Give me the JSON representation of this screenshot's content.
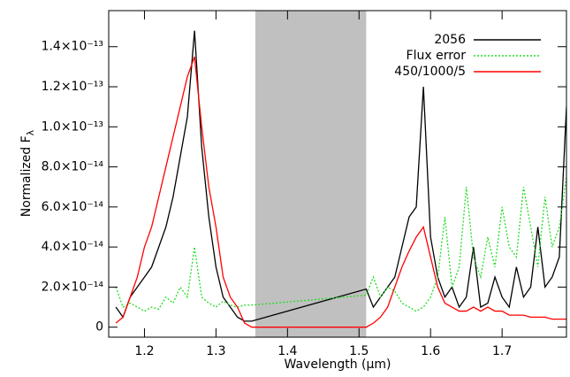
{
  "chart_data": {
    "type": "line",
    "x_label": "Wavelength (μm)",
    "y_label": "Normalized F",
    "y_label_subscript": "λ",
    "xlim": [
      1.15,
      1.79
    ],
    "ylim": [
      -5e-15,
      1.58e-13
    ],
    "xticks": [
      1.2,
      1.3,
      1.4,
      1.5,
      1.6,
      1.7
    ],
    "yticks": [
      0,
      {
        "value": 2e-14,
        "label": "2.0×10⁻¹⁴"
      },
      {
        "value": 4e-14,
        "label": "4.0×10⁻¹⁴"
      },
      {
        "value": 6e-14,
        "label": "6.0×10⁻¹⁴"
      },
      {
        "value": 8e-14,
        "label": "8.0×10⁻¹⁴"
      },
      {
        "value": 1e-13,
        "label": "1.0×10⁻¹³"
      },
      {
        "value": 1.2e-13,
        "label": "1.2×10⁻¹³"
      },
      {
        "value": 1.4e-13,
        "label": "1.4×10⁻¹³"
      }
    ],
    "shaded_region": {
      "xrange": [
        1.355,
        1.51
      ],
      "color": "#c0c0c0"
    },
    "legend": "upper right",
    "x": [
      1.16,
      1.17,
      1.18,
      1.19,
      1.2,
      1.21,
      1.22,
      1.23,
      1.24,
      1.25,
      1.26,
      1.27,
      1.28,
      1.29,
      1.3,
      1.31,
      1.32,
      1.33,
      1.34,
      1.35,
      1.51,
      1.52,
      1.53,
      1.54,
      1.55,
      1.56,
      1.57,
      1.58,
      1.59,
      1.6,
      1.61,
      1.62,
      1.63,
      1.64,
      1.65,
      1.66,
      1.67,
      1.68,
      1.69,
      1.7,
      1.71,
      1.72,
      1.73,
      1.74,
      1.75,
      1.76,
      1.77,
      1.78,
      1.79
    ],
    "series": [
      {
        "name": "2056",
        "color": "#000000",
        "dash": "none",
        "values": [
          1e-14,
          5e-15,
          1.5e-14,
          2e-14,
          2.5e-14,
          3e-14,
          4e-14,
          5e-14,
          6.5e-14,
          8.5e-14,
          1.05e-13,
          1.48e-13,
          9e-14,
          5.5e-14,
          3e-14,
          1.5e-14,
          1e-14,
          5e-15,
          3e-15,
          3e-15,
          1.9e-14,
          1e-14,
          1.5e-14,
          2e-14,
          2.5e-14,
          4e-14,
          5.5e-14,
          6e-14,
          1.2e-13,
          4.5e-14,
          2.5e-14,
          1.5e-14,
          2e-14,
          1e-14,
          1.5e-14,
          4e-14,
          1e-14,
          1.2e-14,
          2.5e-14,
          1.5e-14,
          1e-14,
          3e-14,
          1.5e-14,
          2e-14,
          5e-14,
          2e-14,
          2.5e-14,
          3.5e-14,
          1.1e-13
        ]
      },
      {
        "name": "Flux error",
        "color": "#22dd22",
        "dash": "2,2",
        "values": [
          2e-14,
          1e-14,
          1.2e-14,
          1e-14,
          8e-15,
          1e-14,
          9e-15,
          1.5e-14,
          1.2e-14,
          2e-14,
          1.5e-14,
          4e-14,
          1.5e-14,
          1.2e-14,
          1e-14,
          1.3e-14,
          1.1e-14,
          1e-14,
          1.1e-14,
          1.1e-14,
          1.6e-14,
          2.5e-14,
          1.5e-14,
          2e-14,
          1.8e-14,
          1.2e-14,
          1e-14,
          8e-15,
          1e-14,
          1.5e-14,
          2.5e-14,
          5.5e-14,
          2e-14,
          3e-14,
          7e-14,
          3.5e-14,
          2.5e-14,
          4.5e-14,
          3e-14,
          6e-14,
          4e-14,
          3.5e-14,
          7e-14,
          5e-14,
          3e-14,
          6.5e-14,
          4e-14,
          5e-14,
          7.5e-14
        ]
      },
      {
        "name": "450/1000/5",
        "color": "#ff0000",
        "dash": "none",
        "values": [
          2e-15,
          5e-15,
          1.5e-14,
          2.5e-14,
          4e-14,
          5e-14,
          6.5e-14,
          8e-14,
          9.5e-14,
          1.1e-13,
          1.25e-13,
          1.35e-13,
          1e-13,
          7e-14,
          5e-14,
          2.5e-14,
          1.5e-14,
          1e-14,
          2e-15,
          0,
          0,
          2e-15,
          5e-15,
          1e-14,
          2e-14,
          3e-14,
          3.8e-14,
          4.5e-14,
          5e-14,
          3.5e-14,
          2e-14,
          1.2e-14,
          1e-14,
          8e-15,
          8e-15,
          1e-14,
          8e-15,
          1e-14,
          8e-15,
          8e-15,
          6e-15,
          6e-15,
          6e-15,
          5e-15,
          5e-15,
          5e-15,
          4e-15,
          4e-15,
          4e-15
        ]
      }
    ]
  }
}
